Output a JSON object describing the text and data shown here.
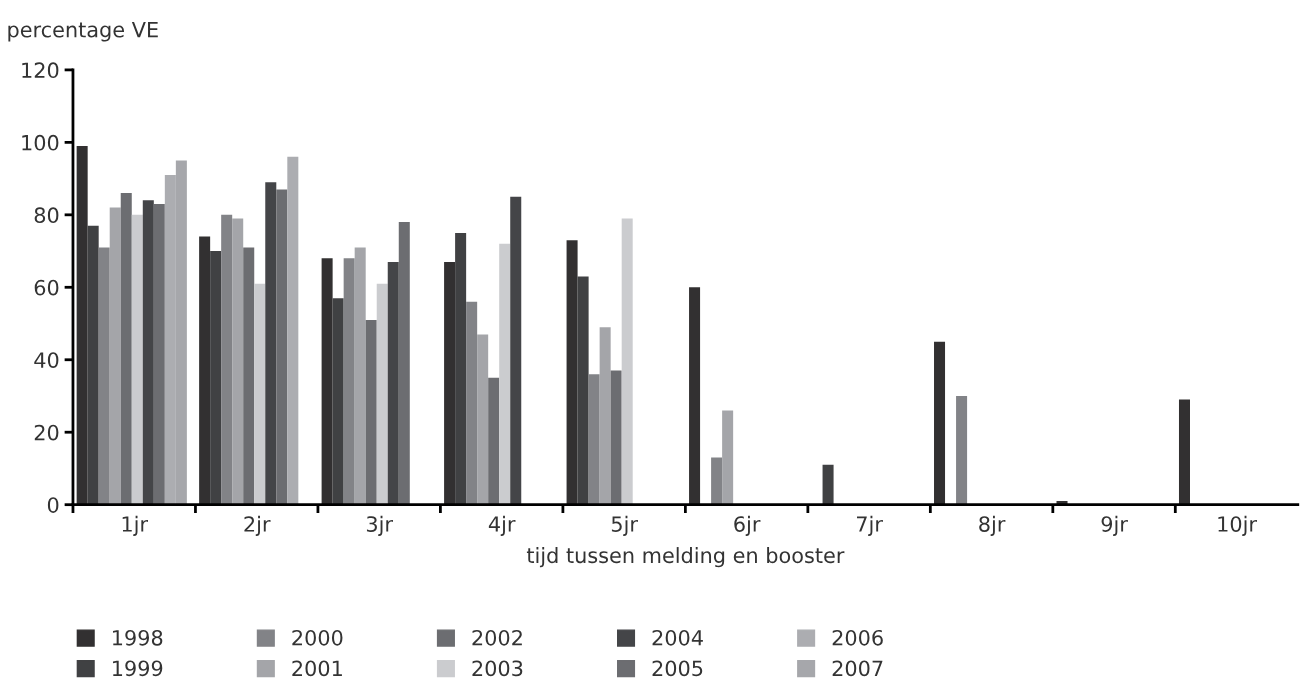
{
  "chart_data": {
    "type": "bar",
    "ylabel": "percentage VE",
    "xlabel": "tijd tussen melding en booster",
    "categories": [
      "1jr",
      "2jr",
      "3jr",
      "4jr",
      "5jr",
      "6jr",
      "7jr",
      "8jr",
      "9jr",
      "10jr"
    ],
    "series": [
      {
        "name": "1998",
        "color": "#323031",
        "values": [
          99,
          74,
          68,
          67,
          73,
          60,
          null,
          45,
          1,
          29
        ]
      },
      {
        "name": "1999",
        "color": "#404143",
        "values": [
          77,
          70,
          57,
          75,
          63,
          null,
          11,
          null,
          null,
          null
        ]
      },
      {
        "name": "2000",
        "color": "#828387",
        "values": [
          71,
          80,
          68,
          56,
          36,
          13,
          null,
          30,
          null,
          null
        ]
      },
      {
        "name": "2001",
        "color": "#a4a5a9",
        "values": [
          82,
          79,
          71,
          47,
          49,
          26,
          null,
          null,
          null,
          null
        ]
      },
      {
        "name": "2002",
        "color": "#6c6d71",
        "values": [
          86,
          71,
          51,
          35,
          37,
          null,
          null,
          null,
          null,
          null
        ]
      },
      {
        "name": "2003",
        "color": "#cbcccf",
        "values": [
          80,
          61,
          61,
          72,
          79,
          null,
          null,
          null,
          null,
          null
        ]
      },
      {
        "name": "2004",
        "color": "#444548",
        "values": [
          84,
          89,
          67,
          85,
          null,
          null,
          null,
          null,
          null,
          null
        ]
      },
      {
        "name": "2005",
        "color": "#6c6d71",
        "values": [
          83,
          87,
          78,
          null,
          null,
          null,
          null,
          null,
          null,
          null
        ]
      },
      {
        "name": "2006",
        "color": "#acadb1",
        "values": [
          91,
          96,
          null,
          null,
          null,
          null,
          null,
          null,
          null,
          null
        ]
      },
      {
        "name": "2007",
        "color": "#a6a7ab",
        "values": [
          95,
          null,
          null,
          null,
          null,
          null,
          null,
          null,
          null,
          null
        ]
      }
    ],
    "ylim": [
      0,
      120
    ],
    "yticks": [
      0,
      20,
      40,
      60,
      80,
      100,
      120
    ],
    "grid": false,
    "legend": "bottom"
  }
}
